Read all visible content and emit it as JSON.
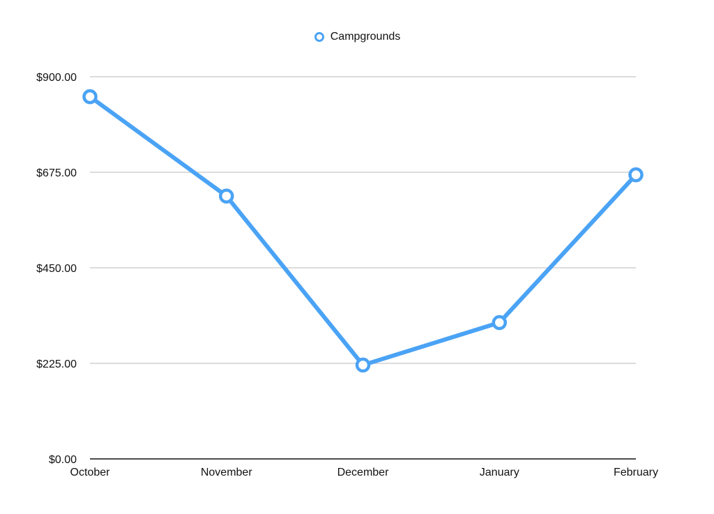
{
  "chart_data": {
    "type": "line",
    "categories": [
      "October",
      "November",
      "December",
      "January",
      "February"
    ],
    "series": [
      {
        "name": "Campgrounds",
        "color": "#4aa3f5",
        "values": [
          853,
          619,
          221,
          321,
          669
        ]
      }
    ],
    "ylim": [
      0,
      900
    ],
    "y_ticks": [
      0,
      225,
      450,
      675,
      900
    ],
    "y_tick_labels": [
      "$0.00",
      "$225.00",
      "$450.00",
      "$675.00",
      "$900.00"
    ],
    "grid": true,
    "legend_position": "top-center",
    "marker": "hollow-circle"
  }
}
